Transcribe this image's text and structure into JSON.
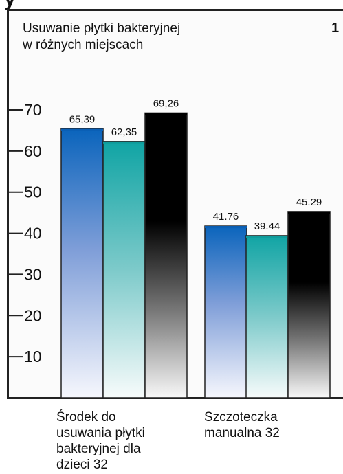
{
  "chart_data": {
    "type": "bar",
    "title": "Usuwanie płytki bakteryjnej\nw różnych miejscach",
    "corner_label": "1",
    "clipped_top_text": "y",
    "categories": [
      "Środek do\nusuwania płytki\nbakteryjnej dla\ndzieci 32",
      "Szczoteczka\nmanualna 32"
    ],
    "series": [
      {
        "values": [
          65.39,
          41.76
        ],
        "color": "#1a6fc0"
      },
      {
        "values": [
          62.35,
          39.44
        ],
        "color": "#1aa6a6"
      },
      {
        "values": [
          69.26,
          45.29
        ],
        "color": "#000000"
      }
    ],
    "data_labels": [
      [
        "65,39",
        "62,35",
        "69,26"
      ],
      [
        "41.76",
        "39.44",
        "45.29"
      ]
    ],
    "yticks": [
      10,
      20,
      30,
      40,
      50,
      60,
      70
    ],
    "ylim": [
      0,
      80
    ],
    "xlabel": "",
    "ylabel": "",
    "grid": false,
    "background": "#fbfbfb"
  }
}
